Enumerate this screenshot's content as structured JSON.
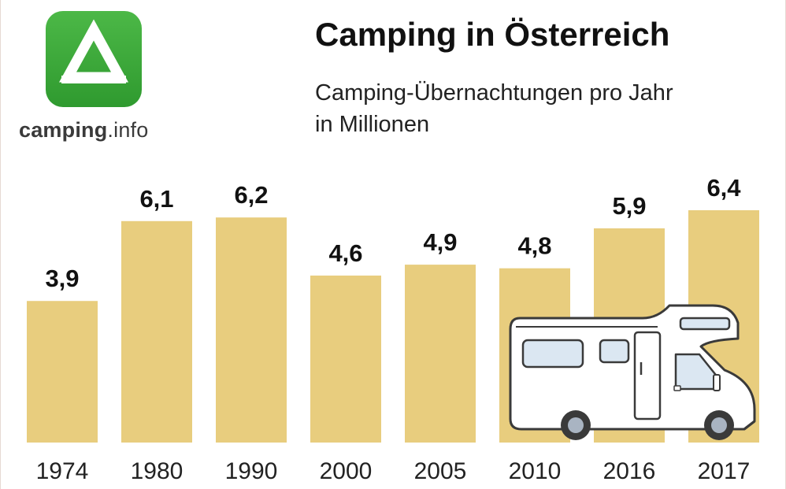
{
  "logo": {
    "brand": "camping",
    "suffix": ".info",
    "color": "#3aa337",
    "icon": "tent-icon"
  },
  "title": "Camping in Österreich",
  "subtitle_line1": "Camping-Übernachtungen pro Jahr",
  "subtitle_line2": "in Millionen",
  "illustration": "motorhome-icon",
  "chart_data": {
    "type": "bar",
    "title": "Camping in Österreich",
    "subtitle": "Camping-Übernachtungen pro Jahr in Millionen",
    "categories": [
      "1974",
      "1980",
      "1990",
      "2000",
      "2005",
      "2010",
      "2016",
      "2017"
    ],
    "values": [
      3.9,
      6.1,
      6.2,
      4.6,
      4.9,
      4.8,
      5.9,
      6.4
    ],
    "labels": [
      "3,9",
      "6,1",
      "6,2",
      "4,6",
      "4,9",
      "4,8",
      "5,9",
      "6,4"
    ],
    "bar_color": "#e8cd7e",
    "grid": false,
    "legend": "none"
  }
}
